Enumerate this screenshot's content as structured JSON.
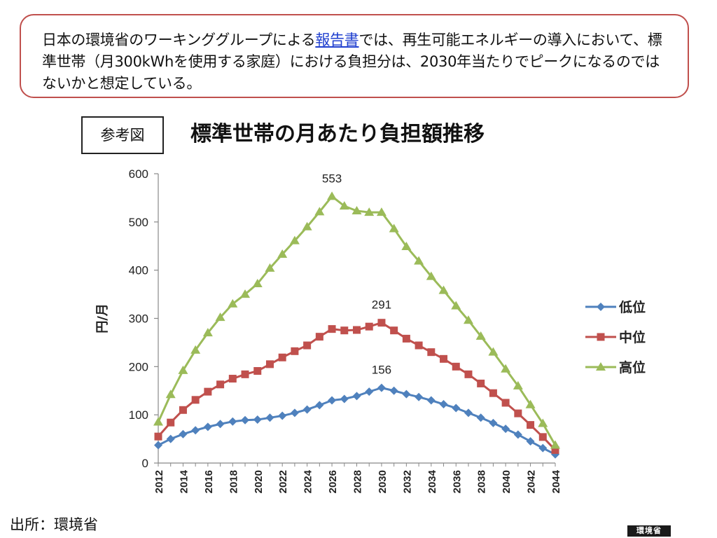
{
  "callout": {
    "text_before": "日本の環境省のワーキンググループによる",
    "link": "報告書",
    "text_after": "では、再生可能エネルギーの導入において、標準世帯（月300kWhを使用する家庭）における負担分は、2030年当たりでピークになるのではないかと想定している。"
  },
  "figure_tag": "参考図",
  "source": "出所：環境省",
  "logo_text": "環境省",
  "chart_data": {
    "type": "line",
    "title": "標準世帯の月あたり負担額推移",
    "xlabel": "",
    "ylabel": "円/月",
    "ylim": [
      0,
      600
    ],
    "yticks": [
      0,
      100,
      200,
      300,
      400,
      500,
      600
    ],
    "xticks": [
      2012,
      2014,
      2016,
      2018,
      2020,
      2022,
      2024,
      2026,
      2028,
      2030,
      2032,
      2034,
      2036,
      2038,
      2040,
      2042,
      2044
    ],
    "legend_position": "right",
    "x": [
      2012,
      2013,
      2014,
      2015,
      2016,
      2017,
      2018,
      2019,
      2020,
      2021,
      2022,
      2023,
      2024,
      2025,
      2026,
      2027,
      2028,
      2029,
      2030,
      2031,
      2032,
      2033,
      2034,
      2035,
      2036,
      2037,
      2038,
      2039,
      2040,
      2041,
      2042,
      2043,
      2044
    ],
    "series": [
      {
        "name": "低位",
        "color": "#4f81bd",
        "marker": "diamond",
        "values": [
          37,
          50,
          60,
          68,
          75,
          81,
          86,
          89,
          90,
          94,
          98,
          104,
          111,
          120,
          130,
          133,
          139,
          148,
          156,
          150,
          143,
          137,
          130,
          122,
          114,
          104,
          94,
          83,
          71,
          59,
          45,
          31,
          18
        ],
        "label_index": 18,
        "label": "156"
      },
      {
        "name": "中位",
        "color": "#c0504d",
        "marker": "square",
        "values": [
          55,
          84,
          110,
          131,
          148,
          163,
          175,
          184,
          191,
          205,
          219,
          232,
          244,
          262,
          278,
          275,
          276,
          283,
          291,
          275,
          258,
          244,
          230,
          216,
          200,
          184,
          165,
          145,
          125,
          103,
          79,
          54,
          27
        ],
        "label_index": 18,
        "label": "291"
      },
      {
        "name": "高位",
        "color": "#9bbb59",
        "marker": "triangle",
        "values": [
          85,
          142,
          192,
          234,
          270,
          302,
          330,
          350,
          372,
          404,
          433,
          461,
          490,
          521,
          553,
          533,
          523,
          520,
          520,
          486,
          449,
          419,
          387,
          358,
          326,
          296,
          263,
          230,
          195,
          160,
          121,
          82,
          37
        ],
        "label_index": 14,
        "label": "553"
      }
    ]
  }
}
